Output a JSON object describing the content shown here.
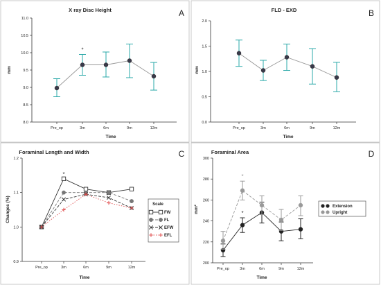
{
  "chart_data": [
    {
      "type": "line",
      "panel_label": "A",
      "title": "X ray Disc Height",
      "xlabel": "Time",
      "ylabel": "mm",
      "categories": [
        "Pre_op",
        "3m",
        "6m",
        "9m",
        "12m"
      ],
      "yticks": [
        "8.0",
        "8.5",
        "9.0",
        "9.5",
        "10.0",
        "10.5",
        "11.0"
      ],
      "ylim": [
        8.0,
        11.0
      ],
      "series": [
        {
          "values": [
            8.98,
            9.65,
            9.65,
            9.77,
            9.32
          ],
          "error_low": [
            8.73,
            9.35,
            9.3,
            9.28,
            8.92
          ],
          "error_high": [
            9.25,
            9.95,
            10.02,
            10.25,
            9.72
          ],
          "color": "#2aa8a8"
        }
      ],
      "annotations": [
        {
          "text": "*",
          "category": "3m"
        }
      ]
    },
    {
      "type": "line",
      "panel_label": "B",
      "title": "FLD - EXD",
      "xlabel": "Time",
      "ylabel": "mm",
      "categories": [
        "Pre_op",
        "3m",
        "6m",
        "9m",
        "12m"
      ],
      "yticks": [
        "0.0",
        "0.5",
        "1.0",
        "1.5",
        "2.0"
      ],
      "ylim": [
        0.0,
        2.0
      ],
      "series": [
        {
          "values": [
            1.36,
            1.02,
            1.28,
            1.1,
            0.88
          ],
          "error_low": [
            1.1,
            0.82,
            1.02,
            0.75,
            0.6
          ],
          "error_high": [
            1.62,
            1.22,
            1.54,
            1.45,
            1.18
          ],
          "color": "#2aa8a8"
        }
      ]
    },
    {
      "type": "line",
      "panel_label": "C",
      "title": "Foraminal Length and Width",
      "xlabel": "Time",
      "ylabel": "Changes (%)",
      "categories": [
        "Pre_op",
        "3m",
        "6m",
        "9m",
        "12m"
      ],
      "yticks": [
        "0.9",
        "1.0",
        "1.1",
        "1.2"
      ],
      "ylim": [
        0.9,
        1.2
      ],
      "legend": {
        "title": "Scale",
        "position": "bottom-right"
      },
      "series": [
        {
          "name": "FW",
          "values": [
            1.0,
            1.14,
            1.11,
            1.1,
            1.11
          ],
          "marker": "square-open",
          "color": "#333333",
          "dash": "solid"
        },
        {
          "name": "FL",
          "values": [
            1.0,
            1.1,
            1.1,
            1.1,
            1.075
          ],
          "marker": "circle",
          "color": "#777777",
          "dash": "dashed"
        },
        {
          "name": "EFW",
          "values": [
            1.0,
            1.08,
            1.095,
            1.085,
            1.055
          ],
          "marker": "x",
          "color": "#333333",
          "dash": "dashed"
        },
        {
          "name": "EFL",
          "values": [
            1.0,
            1.05,
            1.095,
            1.07,
            1.055
          ],
          "marker": "plus",
          "color": "#e05050",
          "dash": "dotted"
        }
      ],
      "annotations": [
        {
          "text": "*",
          "category": "3m"
        }
      ]
    },
    {
      "type": "line",
      "panel_label": "D",
      "title": "Foraminal Area",
      "xlabel": "Time",
      "ylabel": "mm²",
      "categories": [
        "Pre_op",
        "3m",
        "6m",
        "9m",
        "12m"
      ],
      "yticks": [
        "200",
        "220",
        "240",
        "260",
        "280",
        "300"
      ],
      "ylim": [
        200,
        300
      ],
      "legend": {
        "position": "right"
      },
      "series": [
        {
          "name": "Extension",
          "values": [
            212,
            236,
            248,
            230,
            232
          ],
          "error_low": [
            206,
            229,
            238,
            221,
            223
          ],
          "error_high": [
            218,
            243,
            258,
            239,
            242
          ],
          "color": "#222222",
          "dash": "solid"
        },
        {
          "name": "Upright",
          "values": [
            221,
            269,
            255,
            241,
            255
          ],
          "error_low": [
            213,
            260,
            246,
            231,
            245
          ],
          "error_high": [
            230,
            278,
            264,
            251,
            264
          ],
          "color": "#999999",
          "dash": "dashed"
        }
      ],
      "annotations": [
        {
          "text": "*",
          "category": "3m",
          "series": "Upright"
        },
        {
          "text": "*",
          "category": "3m",
          "series": "Extension"
        }
      ]
    }
  ]
}
